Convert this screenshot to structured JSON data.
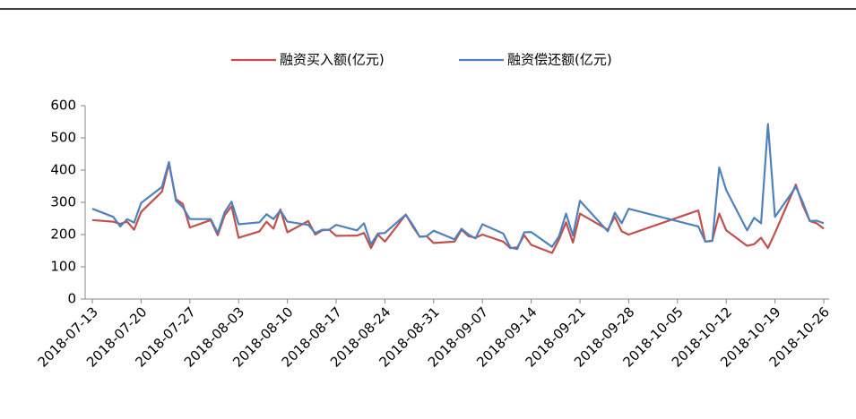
{
  "chart_data": {
    "type": "line",
    "x": [
      "2018-07-13",
      "2018-07-16",
      "2018-07-17",
      "2018-07-18",
      "2018-07-19",
      "2018-07-20",
      "2018-07-23",
      "2018-07-24",
      "2018-07-25",
      "2018-07-26",
      "2018-07-27",
      "2018-07-30",
      "2018-07-31",
      "2018-08-01",
      "2018-08-02",
      "2018-08-03",
      "2018-08-06",
      "2018-08-07",
      "2018-08-08",
      "2018-08-09",
      "2018-08-10",
      "2018-08-13",
      "2018-08-14",
      "2018-08-15",
      "2018-08-16",
      "2018-08-17",
      "2018-08-20",
      "2018-08-21",
      "2018-08-22",
      "2018-08-23",
      "2018-08-24",
      "2018-08-27",
      "2018-08-28",
      "2018-08-29",
      "2018-08-30",
      "2018-08-31",
      "2018-09-03",
      "2018-09-04",
      "2018-09-05",
      "2018-09-06",
      "2018-09-07",
      "2018-09-10",
      "2018-09-11",
      "2018-09-12",
      "2018-09-13",
      "2018-09-14",
      "2018-09-17",
      "2018-09-18",
      "2018-09-19",
      "2018-09-20",
      "2018-09-21",
      "2018-09-25",
      "2018-09-26",
      "2018-09-27",
      "2018-09-28",
      "2018-10-08",
      "2018-10-09",
      "2018-10-10",
      "2018-10-11",
      "2018-10-12",
      "2018-10-15",
      "2018-10-16",
      "2018-10-17",
      "2018-10-18",
      "2018-10-19",
      "2018-10-22",
      "2018-10-23",
      "2018-10-24",
      "2018-10-25",
      "2018-10-26"
    ],
    "series": [
      {
        "name": "融资买入额(亿元)",
        "color": "#c0504d",
        "values": [
          245,
          240,
          233,
          240,
          215,
          270,
          333,
          420,
          310,
          295,
          222,
          245,
          198,
          260,
          288,
          190,
          210,
          240,
          218,
          278,
          207,
          242,
          200,
          213,
          215,
          196,
          197,
          205,
          158,
          200,
          178,
          262,
          225,
          193,
          195,
          174,
          178,
          215,
          195,
          190,
          200,
          178,
          158,
          160,
          198,
          168,
          143,
          185,
          238,
          175,
          265,
          215,
          255,
          210,
          200,
          275,
          178,
          182,
          265,
          213,
          165,
          170,
          190,
          158,
          205,
          355,
          290,
          242,
          235,
          218
        ]
      },
      {
        "name": "融资偿还额(亿元)",
        "color": "#4f81bd",
        "values": [
          280,
          255,
          225,
          248,
          237,
          298,
          348,
          425,
          305,
          285,
          248,
          248,
          205,
          270,
          302,
          232,
          238,
          263,
          248,
          275,
          240,
          230,
          205,
          215,
          215,
          230,
          213,
          235,
          170,
          203,
          205,
          262,
          230,
          193,
          195,
          212,
          185,
          218,
          200,
          188,
          232,
          203,
          160,
          155,
          207,
          208,
          162,
          195,
          265,
          197,
          305,
          210,
          268,
          235,
          280,
          225,
          178,
          180,
          408,
          338,
          213,
          252,
          235,
          543,
          255,
          348,
          300,
          242,
          243,
          235
        ]
      }
    ],
    "xlim": [
      "2018-07-13",
      "2018-10-26"
    ],
    "xticks": [
      "2018-07-13",
      "2018-07-20",
      "2018-07-27",
      "2018-08-03",
      "2018-08-10",
      "2018-08-17",
      "2018-08-24",
      "2018-08-31",
      "2018-09-07",
      "2018-09-14",
      "2018-09-21",
      "2018-09-28",
      "2018-10-05",
      "2018-10-12",
      "2018-10-19",
      "2018-10-26"
    ],
    "ylim": [
      0,
      600
    ],
    "yticks": [
      0,
      100,
      200,
      300,
      400,
      500,
      600
    ]
  }
}
